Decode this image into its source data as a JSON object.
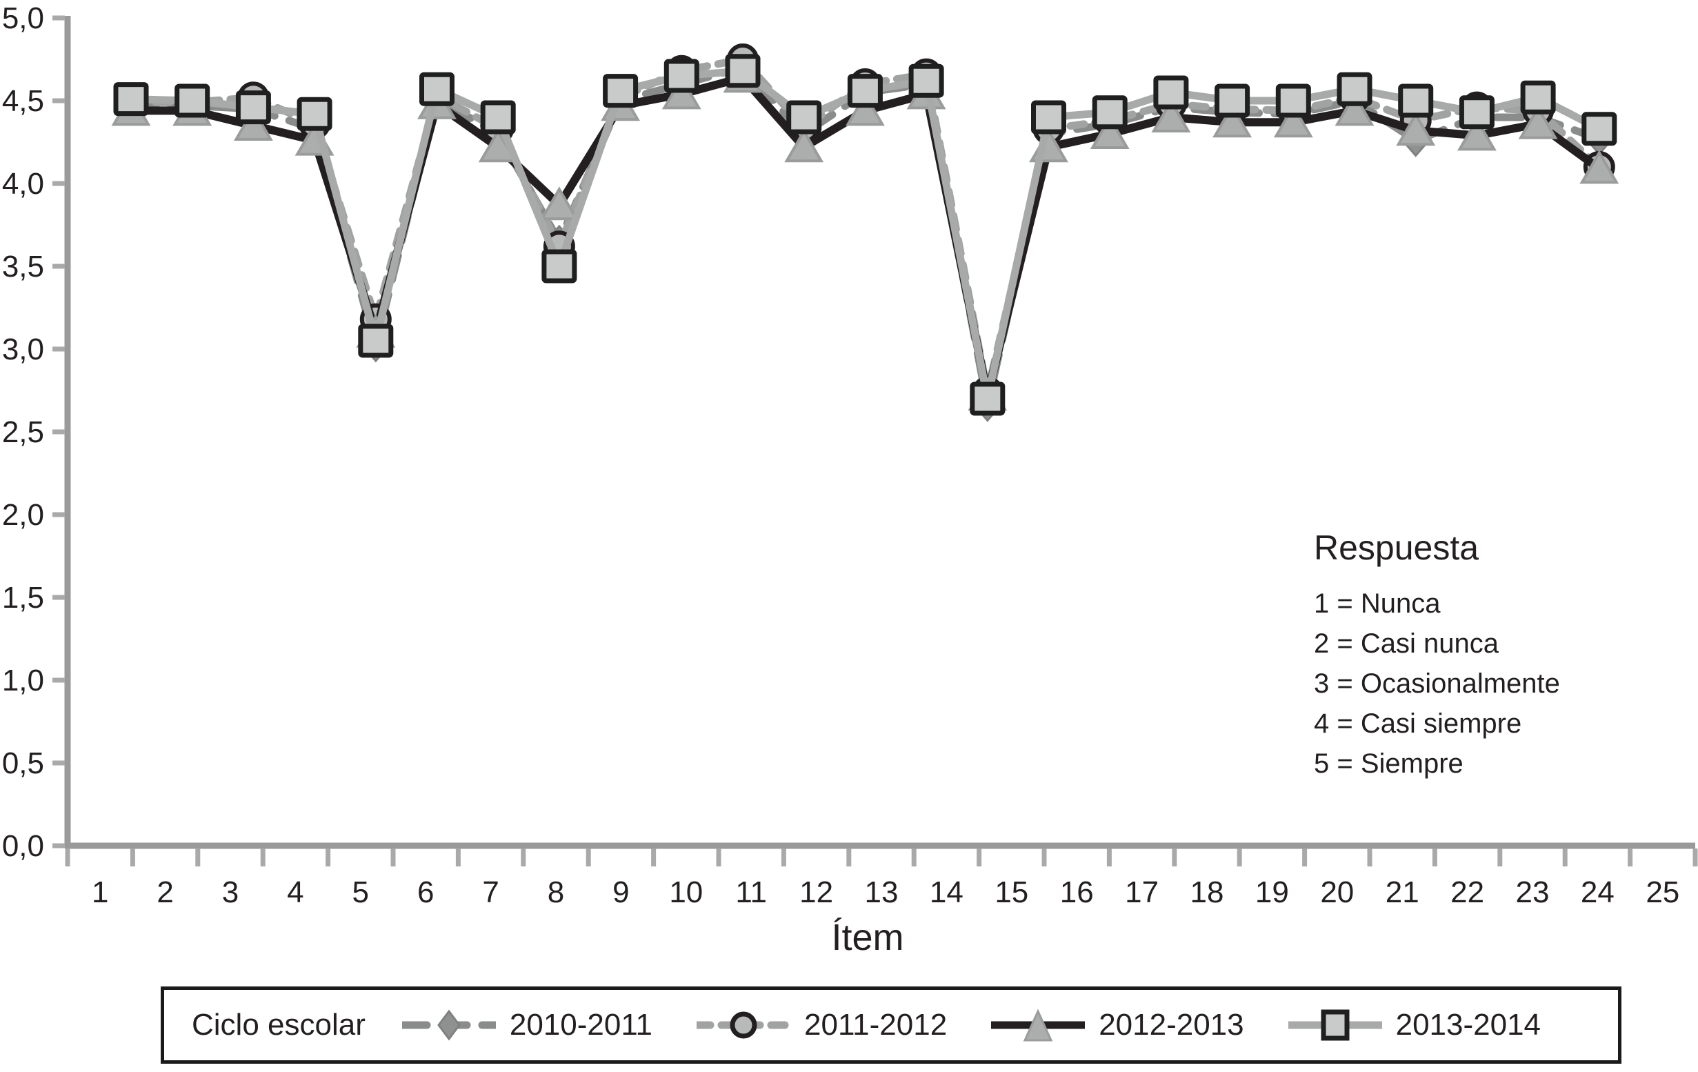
{
  "chart_data": {
    "type": "line",
    "title": "",
    "xlabel": "Ítem",
    "ylabel": "",
    "ylim": [
      0.0,
      5.0
    ],
    "ytick_step": 0.5,
    "grid": false,
    "legend_position": "bottom",
    "legend_title": "Ciclo escolar",
    "x_tick_labels": [
      "1",
      "2",
      "3",
      "4",
      "5",
      "6",
      "7",
      "8",
      "9",
      "10",
      "11",
      "12",
      "13",
      "14",
      "15",
      "16",
      "17",
      "18",
      "19",
      "20",
      "21",
      "22",
      "23",
      "24",
      "25"
    ],
    "y_tick_labels": [
      "0,0",
      "0,5",
      "1,0",
      "1,5",
      "2,0",
      "2,5",
      "3,0",
      "3,5",
      "4,0",
      "4,5",
      "5,0"
    ],
    "categories": [
      1,
      2,
      3,
      4,
      5,
      6,
      7,
      8,
      9,
      10,
      11,
      12,
      13,
      14,
      15,
      16,
      17,
      18,
      19,
      20,
      21,
      22,
      23,
      24,
      25
    ],
    "series": [
      {
        "name": "2010-2011",
        "marker": "diamond",
        "line": "dashed",
        "line_color": "#8a8c8b",
        "marker_fill": "#8f9190",
        "marker_stroke": "#7f8180",
        "values": [
          4.47,
          4.47,
          4.45,
          4.33,
          3.02,
          4.51,
          4.3,
          3.65,
          4.5,
          4.6,
          4.7,
          4.3,
          4.55,
          4.6,
          2.66,
          4.3,
          4.36,
          4.46,
          4.43,
          4.42,
          4.5,
          4.26,
          4.4,
          4.4,
          4.27
        ]
      },
      {
        "name": "2011-2012",
        "marker": "circle",
        "line": "dashed",
        "line_color": "#a1a3a2",
        "marker_fill": "#b8bab9",
        "marker_stroke": "#231f20",
        "values": [
          4.49,
          4.49,
          4.52,
          4.36,
          3.18,
          4.53,
          4.33,
          3.62,
          4.52,
          4.68,
          4.75,
          4.34,
          4.6,
          4.66,
          2.74,
          4.33,
          4.38,
          4.48,
          4.45,
          4.44,
          4.52,
          4.38,
          4.46,
          4.44,
          4.1
        ]
      },
      {
        "name": "2012-2013",
        "marker": "triangle",
        "line": "solid",
        "line_color": "#231f20",
        "marker_fill": "#acaead",
        "marker_stroke": "#9a9c9b",
        "values": [
          4.44,
          4.44,
          4.35,
          4.26,
          3.1,
          4.48,
          4.22,
          3.87,
          4.47,
          4.54,
          4.64,
          4.22,
          4.44,
          4.54,
          2.72,
          4.22,
          4.3,
          4.4,
          4.37,
          4.37,
          4.44,
          4.32,
          4.29,
          4.36,
          4.09
        ]
      },
      {
        "name": "2013-2014",
        "marker": "square",
        "line": "solid",
        "line_color": "#a8aaa9",
        "marker_fill": "#c9cbca",
        "marker_stroke": "#1f1f1f",
        "values": [
          4.51,
          4.5,
          4.46,
          4.42,
          3.05,
          4.57,
          4.4,
          3.5,
          4.56,
          4.65,
          4.68,
          4.4,
          4.56,
          4.62,
          2.7,
          4.4,
          4.43,
          4.55,
          4.5,
          4.5,
          4.57,
          4.5,
          4.43,
          4.52,
          4.33
        ]
      }
    ],
    "annotation": {
      "title": "Respuesta",
      "lines": [
        "1 = Nunca",
        "2 = Casi nunca",
        "3 = Ocasionalmente",
        "4 = Casi siempre",
        "5 = Siempre"
      ]
    }
  }
}
